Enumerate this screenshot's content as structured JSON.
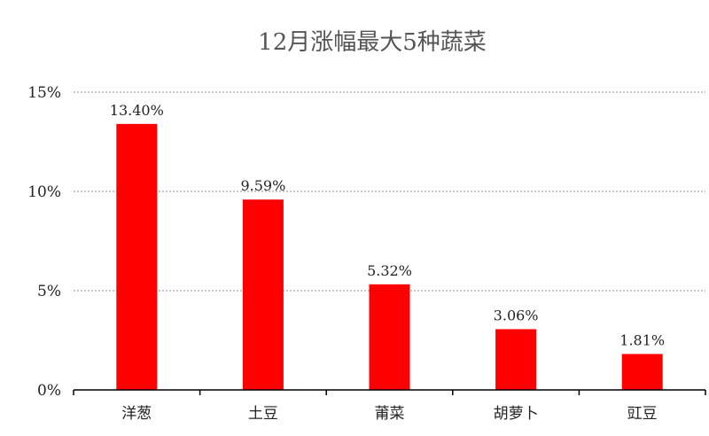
{
  "chart_data": {
    "type": "bar",
    "title": "12月涨幅最大5种蔬菜",
    "categories": [
      "洋葱",
      "土豆",
      "莆菜",
      "胡萝卜",
      "豇豆"
    ],
    "values": [
      13.4,
      9.59,
      5.32,
      3.06,
      1.81
    ],
    "data_labels": [
      "13.40%",
      "9.59%",
      "5.32%",
      "3.06%",
      "1.81%"
    ],
    "xlabel": "",
    "ylabel": "",
    "ylim": [
      0,
      15
    ],
    "yticks": [
      0,
      5,
      10,
      15
    ],
    "ytick_labels": [
      "0%",
      "5%",
      "10%",
      "15%"
    ],
    "grid": true,
    "bar_color": "#ff0000",
    "legend": "none"
  }
}
